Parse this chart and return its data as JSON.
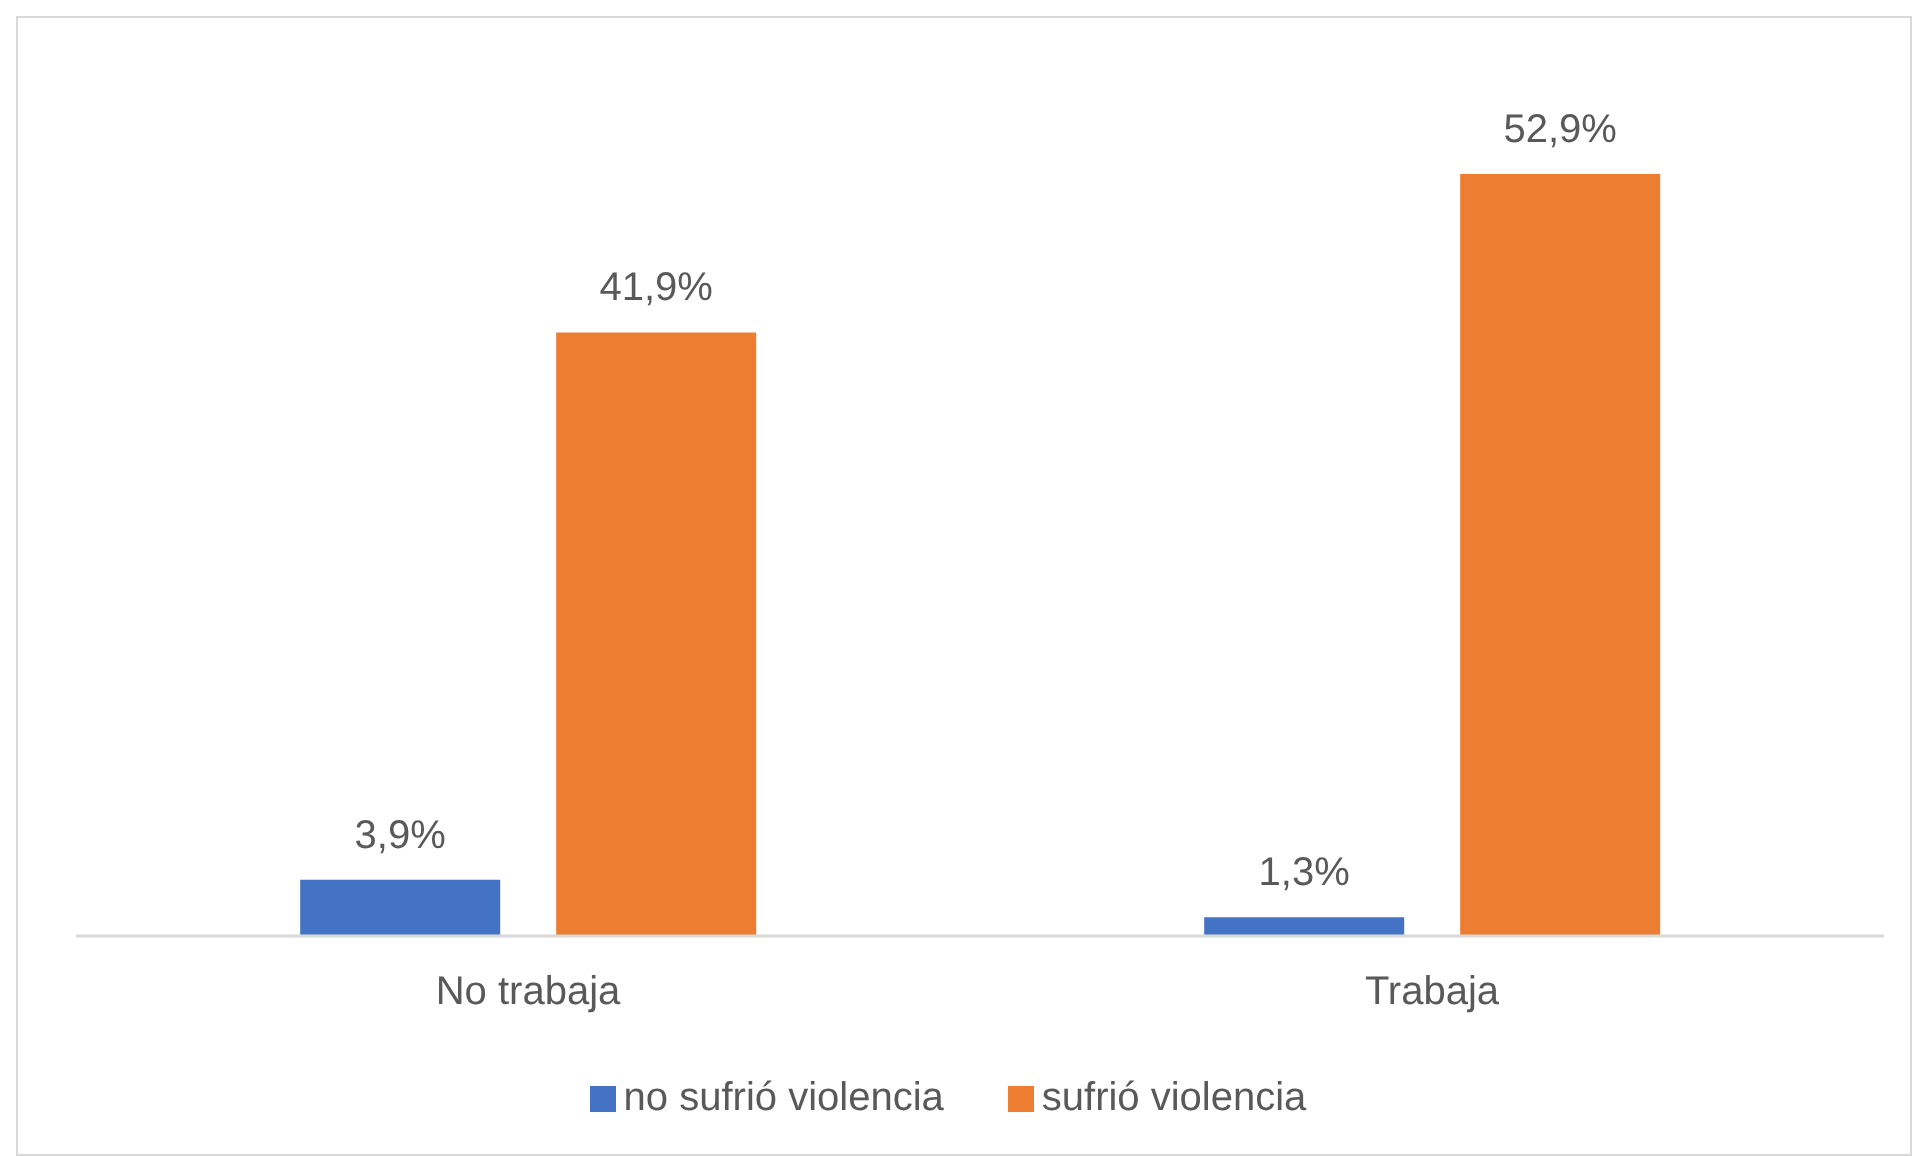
{
  "chart_data": {
    "type": "bar",
    "categories": [
      "No trabaja",
      "Trabaja"
    ],
    "series": [
      {
        "name": "no sufrió violencia",
        "color": "#4472c4",
        "values": [
          3.9,
          1.3
        ],
        "value_labels": [
          "3,9%",
          "1,3%"
        ]
      },
      {
        "name": "sufrió violencia",
        "color": "#ed7d31",
        "values": [
          41.9,
          52.9
        ],
        "value_labels": [
          "41,9%",
          "52,9%"
        ]
      }
    ],
    "legend": "bottom"
  }
}
